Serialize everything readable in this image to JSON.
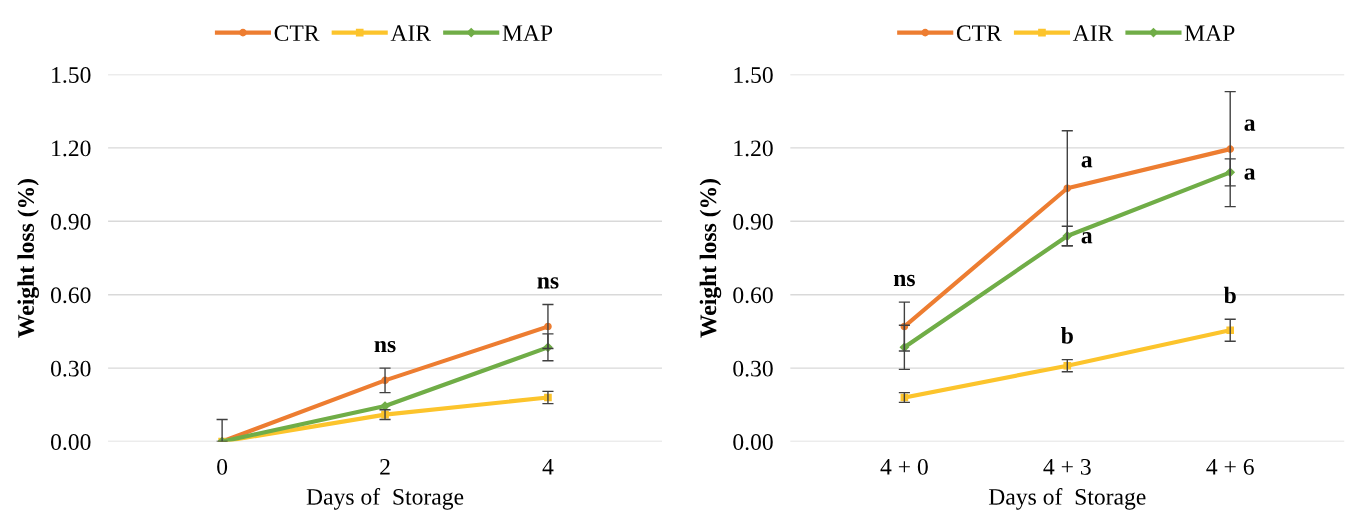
{
  "chart_data": [
    {
      "type": "line",
      "categories": [
        "0",
        "2",
        "4"
      ],
      "xlabel": "Days of  Storage",
      "ylabel": "Weight loss (%)",
      "ylim": [
        0,
        1.5
      ],
      "yticks": [
        {
          "value": 0,
          "label": "0.00"
        },
        {
          "value": 0.3,
          "label": "0.30"
        },
        {
          "value": 0.6,
          "label": "0.60"
        },
        {
          "value": 0.9,
          "label": "0.90"
        },
        {
          "value": 1.2,
          "label": "1.20"
        },
        {
          "value": 1.5,
          "label": "1.50"
        }
      ],
      "grid": "y",
      "legend": "top",
      "series": [
        {
          "name": "CTR",
          "color": "#ed7d31",
          "marker": "circle",
          "values": [
            0,
            0.25,
            0.47
          ],
          "errors": [
            [
              0,
              0.09
            ],
            0.05,
            0.09
          ]
        },
        {
          "name": "AIR",
          "color": "#fcc42c",
          "marker": "square",
          "values": [
            0,
            0.11,
            0.18
          ],
          "errors": [
            null,
            0.02,
            0.025
          ]
        },
        {
          "name": "MAP",
          "color": "#70ad47",
          "marker": "diamond",
          "values": [
            0,
            0.145,
            0.385
          ],
          "errors": [
            null,
            null,
            0.055
          ]
        }
      ],
      "annotations": [
        {
          "text": "ns",
          "x": "2",
          "y": 0.3
        },
        {
          "text": "ns",
          "x": "4",
          "y": 0.56
        }
      ]
    },
    {
      "type": "line",
      "categories": [
        "4 + 0",
        "4 + 3",
        "4 + 6"
      ],
      "xlabel": "Days of  Storage",
      "ylabel": "Weight loss (%)",
      "ylim": [
        0,
        1.5
      ],
      "yticks": [
        {
          "value": 0,
          "label": "0.00"
        },
        {
          "value": 0.3,
          "label": "0.30"
        },
        {
          "value": 0.6,
          "label": "0.60"
        },
        {
          "value": 0.9,
          "label": "0.90"
        },
        {
          "value": 1.2,
          "label": "1.20"
        },
        {
          "value": 1.5,
          "label": "1.50"
        }
      ],
      "grid": "y",
      "legend": "top",
      "series": [
        {
          "name": "CTR",
          "color": "#ed7d31",
          "marker": "circle",
          "values": [
            0.47,
            1.035,
            1.195
          ],
          "errors": [
            0.1,
            0.235,
            0.235
          ]
        },
        {
          "name": "AIR",
          "color": "#fcc42c",
          "marker": "square",
          "values": [
            0.18,
            0.31,
            0.455
          ],
          "errors": [
            0.02,
            0.025,
            0.045
          ]
        },
        {
          "name": "MAP",
          "color": "#70ad47",
          "marker": "diamond",
          "values": [
            0.385,
            0.84,
            1.1
          ],
          "errors": [
            0.09,
            0.04,
            0.055
          ]
        }
      ],
      "annotations": [
        {
          "text": "ns",
          "x": "4 + 0",
          "y": 0.57
        },
        {
          "text": "a",
          "x": "4 + 3",
          "y": 1.1
        },
        {
          "text": "a",
          "x": "4 + 3",
          "y": 0.79
        },
        {
          "text": "b",
          "x": "4 + 3",
          "y": 0.335
        },
        {
          "text": "a",
          "x": "4 + 6",
          "y": 1.25
        },
        {
          "text": "a",
          "x": "4 + 6",
          "y": 1.05
        },
        {
          "text": "b",
          "x": "4 + 6",
          "y": 0.5
        }
      ]
    }
  ]
}
